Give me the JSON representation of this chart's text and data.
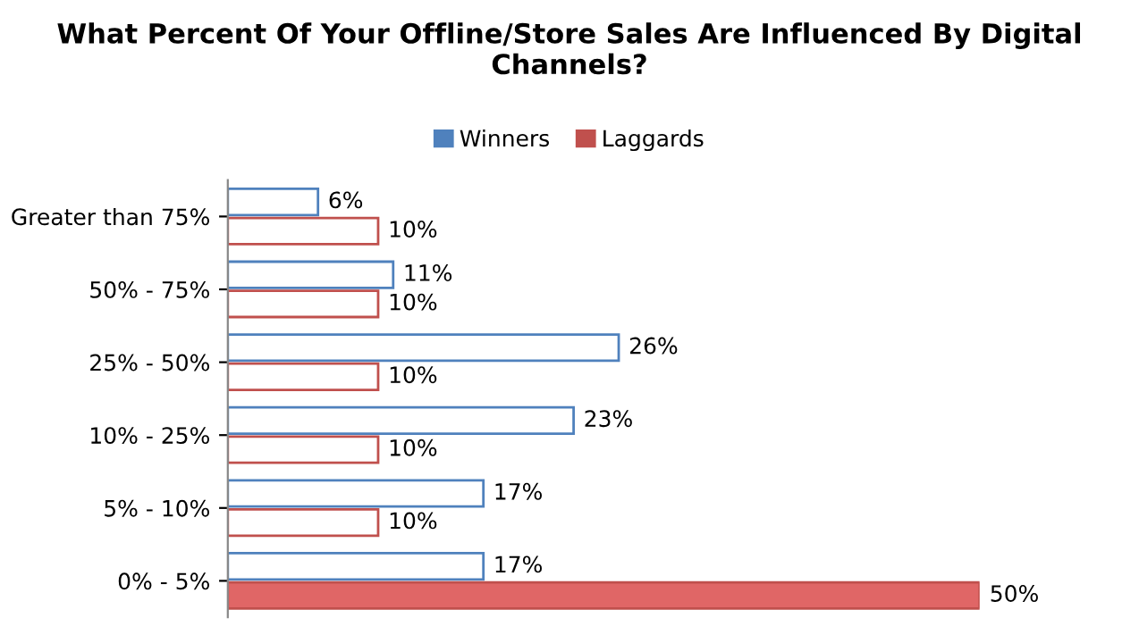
{
  "chart_data": {
    "type": "bar",
    "orientation": "horizontal",
    "title": "What Percent Of Your Offline/Store Sales Are Influenced By Digital Channels?",
    "categories": [
      "Greater than 75%",
      "50% - 75%",
      "25% - 50%",
      "10% - 25%",
      "5% - 10%",
      "0% - 5%"
    ],
    "tick_labels": "y",
    "legend": "top",
    "series": [
      {
        "name": "Winners",
        "color": "#4f81bd",
        "colors": [
          "#ffffff",
          "#ffffff",
          "#ffffff",
          "#ffffff",
          "#ffffff",
          "#ffffff"
        ],
        "values": [
          6,
          11,
          26,
          23,
          17,
          17
        ],
        "value_labels": [
          "6%",
          "11%",
          "26%",
          "23%",
          "17%",
          "17%"
        ]
      },
      {
        "name": "Laggards",
        "color": "#c0504d",
        "colors": [
          "#ffffff",
          "#ffffff",
          "#ffffff",
          "#ffffff",
          "#ffffff",
          "#e06666"
        ],
        "values": [
          10,
          10,
          10,
          10,
          10,
          50
        ],
        "value_labels": [
          "10%",
          "10%",
          "10%",
          "10%",
          "10%",
          "50%"
        ]
      }
    ]
  }
}
